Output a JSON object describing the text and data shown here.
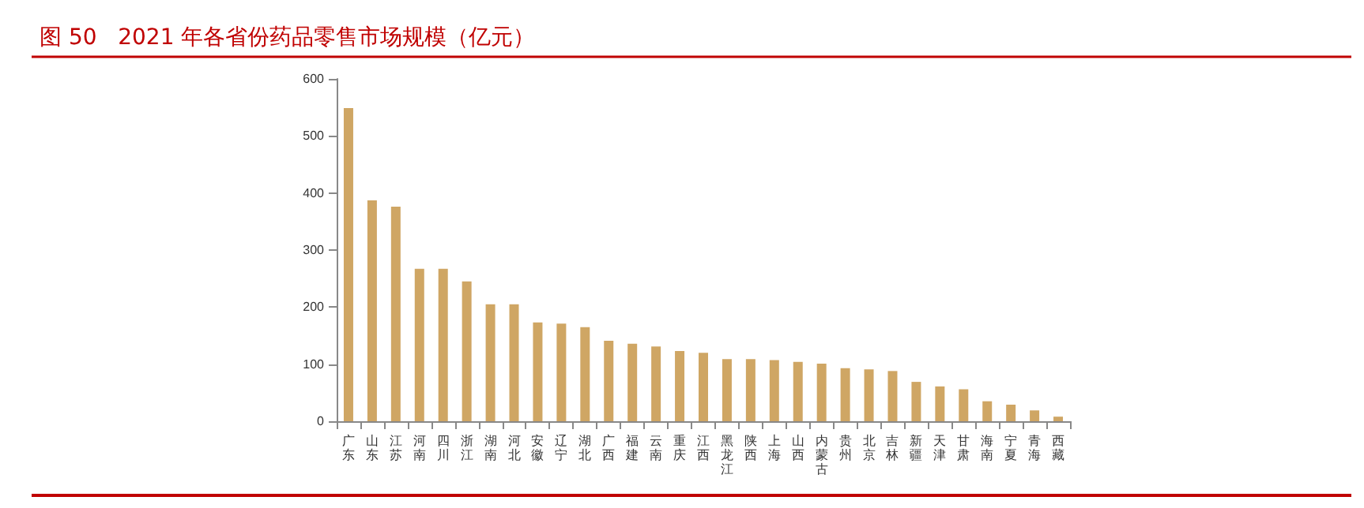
{
  "chart_data": {
    "type": "bar",
    "title": "图 50   2021 年各省份药品零售市场规模（亿元）",
    "categories": [
      "广东",
      "山东",
      "江苏",
      "河南",
      "四川",
      "浙江",
      "湖南",
      "河北",
      "安徽",
      "辽宁",
      "湖北",
      "广西",
      "福建",
      "云南",
      "重庆",
      "江西",
      "黑龙江",
      "陕西",
      "上海",
      "山西",
      "内蒙古",
      "贵州",
      "北京",
      "吉林",
      "新疆",
      "天津",
      "甘肃",
      "海南",
      "宁夏",
      "青海",
      "西藏"
    ],
    "values": [
      549,
      387,
      376,
      267,
      267,
      245,
      205,
      205,
      173,
      171,
      165,
      141,
      136,
      131,
      123,
      120,
      109,
      109,
      107,
      104,
      101,
      93,
      91,
      88,
      69,
      61,
      56,
      35,
      29,
      19,
      8
    ],
    "color": "#cfa664",
    "ylim": [
      0,
      600
    ],
    "yticks": [
      0,
      100,
      200,
      300,
      400,
      500,
      600
    ],
    "grid": false
  }
}
